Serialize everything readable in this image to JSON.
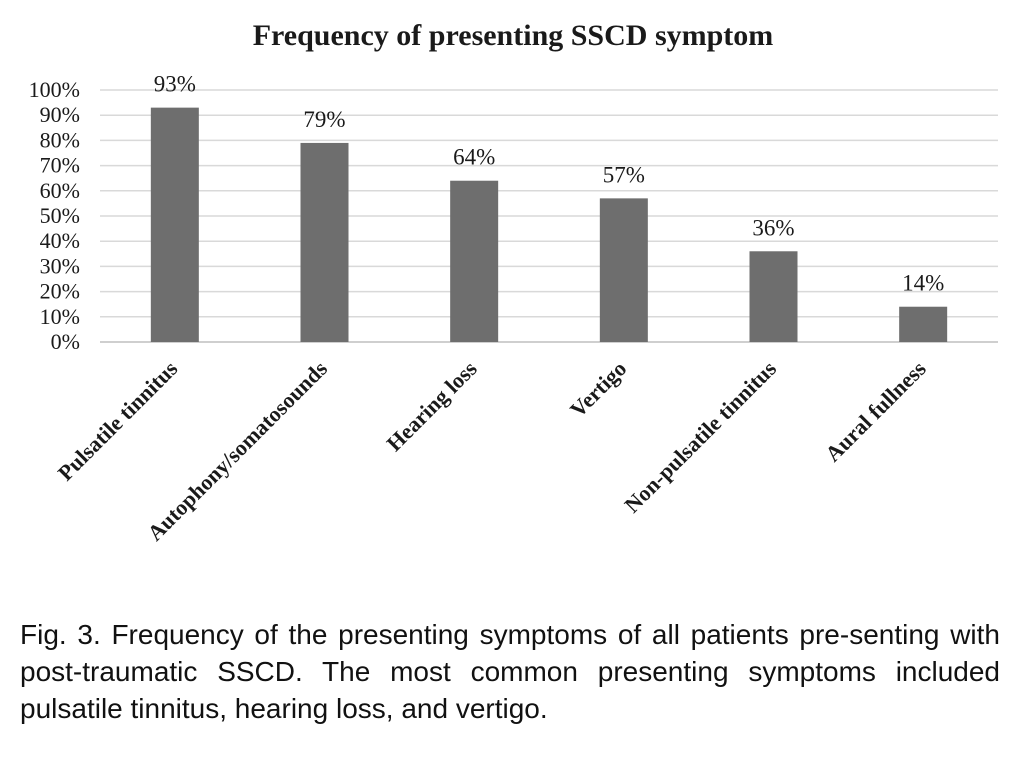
{
  "caption": "Fig. 3. Frequency of the presenting symptoms of all patients pre-senting with post-traumatic SSCD. The most common presenting symptoms included pulsatile tinnitus, hearing loss, and vertigo.",
  "chart_data": {
    "type": "bar",
    "title": "Frequency of presenting SSCD symptom",
    "xlabel": "",
    "ylabel": "",
    "categories": [
      "Pulsatile tinnitus",
      "Autophony/somatosounds",
      "Hearing loss",
      "Vertigo",
      "Non-pulsatile tinnitus",
      "Aural fullness"
    ],
    "values": [
      93,
      79,
      64,
      57,
      36,
      14
    ],
    "data_labels": [
      "93%",
      "79%",
      "64%",
      "57%",
      "36%",
      "14%"
    ],
    "ylim": [
      0,
      100
    ],
    "yticks": [
      "0%",
      "10%",
      "20%",
      "30%",
      "40%",
      "50%",
      "60%",
      "70%",
      "80%",
      "90%",
      "100%"
    ],
    "grid": true,
    "legend": "none",
    "bar_color": "#6e6e6e"
  }
}
